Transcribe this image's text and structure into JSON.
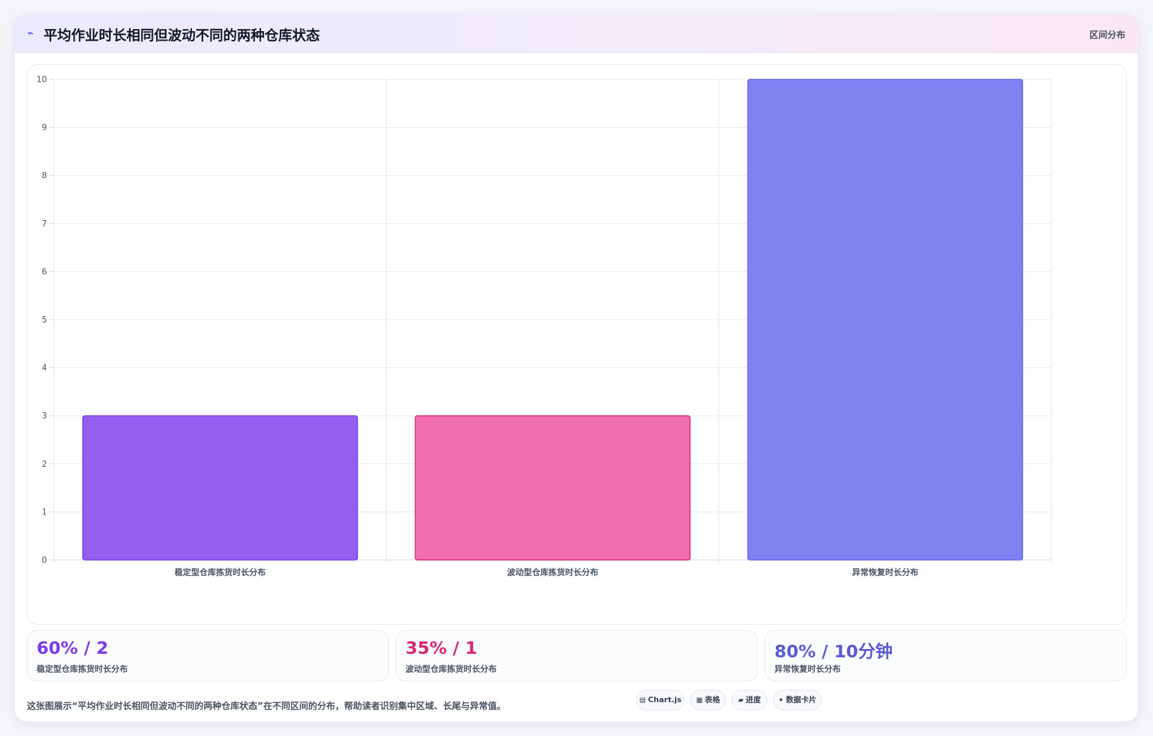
{
  "header": {
    "title": "平均作业时长相同但波动不同的两种仓库状态",
    "title_icon": "⌁",
    "tag": "区间分布"
  },
  "chart_data": {
    "type": "bar",
    "categories": [
      "稳定型仓库拣货时长分布",
      "波动型仓库拣货时长分布",
      "异常恢复时长分布"
    ],
    "values": [
      3,
      3,
      10
    ],
    "ylim": [
      0,
      10
    ],
    "yticks": [
      0,
      1,
      2,
      3,
      4,
      5,
      6,
      7,
      8,
      9,
      10
    ],
    "grid": true,
    "colors": [
      "#9360ef",
      "#f06eab",
      "#8082f2"
    ],
    "border_colors": [
      "#7c3aed",
      "#db2777",
      "#6366f1"
    ]
  },
  "stats": [
    {
      "value": "60% / 2",
      "label": "稳定型仓库拣货时长分布",
      "color": "#7c3aed"
    },
    {
      "value": "35% / 1",
      "label": "波动型仓库拣货时长分布",
      "color": "#db2777"
    },
    {
      "value": "80% / 10分钟",
      "label": "异常恢复时长分布",
      "color": "#5b5bd6"
    }
  ],
  "footer": {
    "text": "这张图展示“平均作业时长相同但波动不同的两种仓库状态”在不同区间的分布，帮助读者识别集中区域、长尾与异常值。",
    "pills": [
      {
        "icon": "▤",
        "icon_name": "chart-icon",
        "label": "Chart.js"
      },
      {
        "icon": "▦",
        "icon_name": "table-icon",
        "label": "表格"
      },
      {
        "icon": "▰",
        "icon_name": "progress-icon",
        "label": "进度"
      },
      {
        "icon": "✦",
        "icon_name": "sparkle-icon",
        "label": "数据卡片"
      }
    ]
  }
}
